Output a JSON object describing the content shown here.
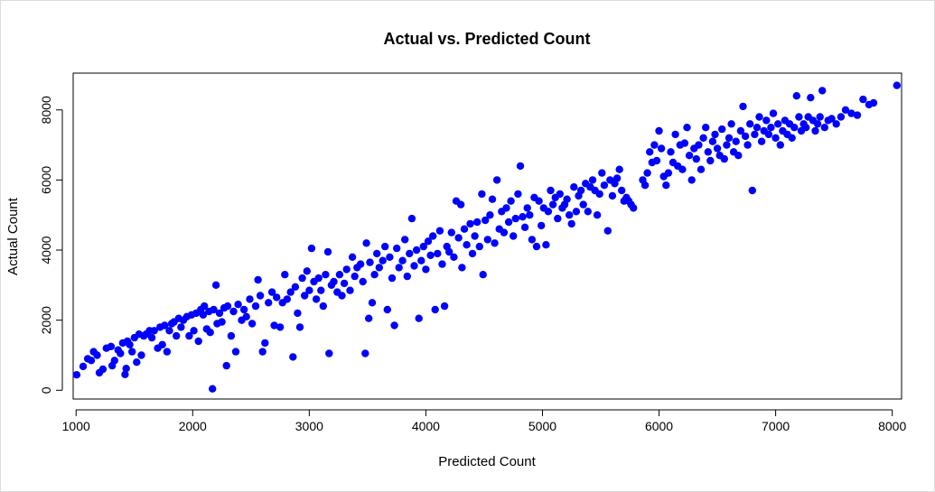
{
  "chart_data": {
    "type": "scatter",
    "title": "Actual vs. Predicted Count",
    "xlabel": "Predicted Count",
    "ylabel": "Actual Count",
    "xlim": [
      975,
      8080
    ],
    "ylim": [
      -250,
      9050
    ],
    "xticks": [
      "1000",
      "2000",
      "3000",
      "4000",
      "5000",
      "6000",
      "7000",
      "8000"
    ],
    "yticks": [
      "0",
      "2000",
      "4000",
      "6000",
      "8000"
    ],
    "grid": false,
    "legend": "none",
    "point_color": "#0000ff",
    "points": [
      [
        1005,
        440
      ],
      [
        1060,
        680
      ],
      [
        1100,
        900
      ],
      [
        1130,
        850
      ],
      [
        1150,
        1100
      ],
      [
        1180,
        1000
      ],
      [
        1200,
        500
      ],
      [
        1230,
        600
      ],
      [
        1260,
        1200
      ],
      [
        1300,
        1250
      ],
      [
        1310,
        700
      ],
      [
        1330,
        850
      ],
      [
        1360,
        1150
      ],
      [
        1380,
        1050
      ],
      [
        1400,
        1350
      ],
      [
        1420,
        450
      ],
      [
        1430,
        620
      ],
      [
        1440,
        1400
      ],
      [
        1460,
        1300
      ],
      [
        1480,
        1100
      ],
      [
        1500,
        1500
      ],
      [
        1520,
        800
      ],
      [
        1540,
        1600
      ],
      [
        1560,
        1000
      ],
      [
        1580,
        1550
      ],
      [
        1600,
        1600
      ],
      [
        1630,
        1700
      ],
      [
        1650,
        1500
      ],
      [
        1670,
        1700
      ],
      [
        1700,
        1200
      ],
      [
        1720,
        1800
      ],
      [
        1740,
        1300
      ],
      [
        1760,
        1850
      ],
      [
        1780,
        1100
      ],
      [
        1800,
        1700
      ],
      [
        1820,
        1900
      ],
      [
        1840,
        1950
      ],
      [
        1860,
        1550
      ],
      [
        1880,
        2050
      ],
      [
        1900,
        1800
      ],
      [
        1920,
        2000
      ],
      [
        1950,
        2100
      ],
      [
        1970,
        1550
      ],
      [
        1990,
        2150
      ],
      [
        2010,
        1700
      ],
      [
        2030,
        2200
      ],
      [
        2050,
        1400
      ],
      [
        2070,
        2300
      ],
      [
        2090,
        2150
      ],
      [
        2100,
        2400
      ],
      [
        2120,
        1750
      ],
      [
        2140,
        2250
      ],
      [
        2150,
        1650
      ],
      [
        2170,
        40
      ],
      [
        2180,
        2300
      ],
      [
        2200,
        3000
      ],
      [
        2210,
        1900
      ],
      [
        2230,
        2200
      ],
      [
        2250,
        1950
      ],
      [
        2270,
        2350
      ],
      [
        2290,
        700
      ],
      [
        2300,
        2400
      ],
      [
        2330,
        1550
      ],
      [
        2350,
        2250
      ],
      [
        2370,
        1100
      ],
      [
        2390,
        2450
      ],
      [
        2420,
        2000
      ],
      [
        2440,
        2300
      ],
      [
        2460,
        2100
      ],
      [
        2490,
        2600
      ],
      [
        2510,
        1900
      ],
      [
        2540,
        2400
      ],
      [
        2560,
        3150
      ],
      [
        2580,
        2700
      ],
      [
        2600,
        1100
      ],
      [
        2620,
        1350
      ],
      [
        2650,
        2500
      ],
      [
        2680,
        2800
      ],
      [
        2700,
        1850
      ],
      [
        2720,
        2650
      ],
      [
        2750,
        1800
      ],
      [
        2770,
        2500
      ],
      [
        2790,
        3300
      ],
      [
        2810,
        2600
      ],
      [
        2840,
        2800
      ],
      [
        2860,
        950
      ],
      [
        2880,
        2950
      ],
      [
        2900,
        2200
      ],
      [
        2920,
        1800
      ],
      [
        2940,
        3200
      ],
      [
        2960,
        2700
      ],
      [
        2980,
        3400
      ],
      [
        3000,
        2850
      ],
      [
        3020,
        4050
      ],
      [
        3040,
        3100
      ],
      [
        3060,
        2600
      ],
      [
        3080,
        3200
      ],
      [
        3100,
        2850
      ],
      [
        3120,
        2400
      ],
      [
        3140,
        3300
      ],
      [
        3160,
        3950
      ],
      [
        3170,
        1050
      ],
      [
        3190,
        3000
      ],
      [
        3210,
        3100
      ],
      [
        3240,
        2800
      ],
      [
        3260,
        3300
      ],
      [
        3280,
        2700
      ],
      [
        3300,
        3050
      ],
      [
        3320,
        3450
      ],
      [
        3350,
        2850
      ],
      [
        3370,
        3800
      ],
      [
        3390,
        3250
      ],
      [
        3410,
        3500
      ],
      [
        3440,
        3600
      ],
      [
        3460,
        3100
      ],
      [
        3480,
        1050
      ],
      [
        3490,
        4200
      ],
      [
        3510,
        2050
      ],
      [
        3520,
        3650
      ],
      [
        3540,
        2500
      ],
      [
        3560,
        3300
      ],
      [
        3580,
        3900
      ],
      [
        3600,
        3500
      ],
      [
        3630,
        3700
      ],
      [
        3650,
        4100
      ],
      [
        3670,
        2300
      ],
      [
        3690,
        3800
      ],
      [
        3710,
        3200
      ],
      [
        3730,
        1850
      ],
      [
        3750,
        4050
      ],
      [
        3770,
        3500
      ],
      [
        3800,
        3700
      ],
      [
        3820,
        4300
      ],
      [
        3840,
        3250
      ],
      [
        3860,
        3900
      ],
      [
        3880,
        4900
      ],
      [
        3900,
        3550
      ],
      [
        3920,
        4000
      ],
      [
        3940,
        2050
      ],
      [
        3960,
        3700
      ],
      [
        3980,
        4100
      ],
      [
        4000,
        3450
      ],
      [
        4020,
        4250
      ],
      [
        4040,
        3850
      ],
      [
        4060,
        4400
      ],
      [
        4080,
        2300
      ],
      [
        4100,
        3900
      ],
      [
        4120,
        4550
      ],
      [
        4140,
        3600
      ],
      [
        4160,
        2400
      ],
      [
        4180,
        4100
      ],
      [
        4200,
        3950
      ],
      [
        4220,
        4500
      ],
      [
        4240,
        3800
      ],
      [
        4260,
        5400
      ],
      [
        4280,
        4350
      ],
      [
        4300,
        5300
      ],
      [
        4310,
        3500
      ],
      [
        4330,
        4600
      ],
      [
        4350,
        4150
      ],
      [
        4380,
        4750
      ],
      [
        4400,
        3900
      ],
      [
        4420,
        4400
      ],
      [
        4440,
        4800
      ],
      [
        4460,
        4100
      ],
      [
        4480,
        5600
      ],
      [
        4490,
        3300
      ],
      [
        4510,
        4850
      ],
      [
        4530,
        4300
      ],
      [
        4550,
        5000
      ],
      [
        4570,
        5450
      ],
      [
        4590,
        4200
      ],
      [
        4610,
        6000
      ],
      [
        4630,
        4600
      ],
      [
        4650,
        5100
      ],
      [
        4670,
        4500
      ],
      [
        4690,
        5200
      ],
      [
        4710,
        4800
      ],
      [
        4730,
        5400
      ],
      [
        4750,
        4400
      ],
      [
        4770,
        4900
      ],
      [
        4790,
        5600
      ],
      [
        4810,
        6400
      ],
      [
        4830,
        4950
      ],
      [
        4850,
        4650
      ],
      [
        4870,
        5200
      ],
      [
        4890,
        5000
      ],
      [
        4910,
        4300
      ],
      [
        4930,
        5500
      ],
      [
        4950,
        4100
      ],
      [
        4970,
        5400
      ],
      [
        4990,
        4700
      ],
      [
        5010,
        5200
      ],
      [
        5030,
        4150
      ],
      [
        5050,
        5100
      ],
      [
        5070,
        5700
      ],
      [
        5090,
        5300
      ],
      [
        5110,
        5500
      ],
      [
        5130,
        4900
      ],
      [
        5150,
        5600
      ],
      [
        5170,
        5200
      ],
      [
        5190,
        5300
      ],
      [
        5210,
        5450
      ],
      [
        5230,
        5000
      ],
      [
        5250,
        4750
      ],
      [
        5270,
        5800
      ],
      [
        5290,
        5100
      ],
      [
        5310,
        5550
      ],
      [
        5330,
        5700
      ],
      [
        5350,
        5300
      ],
      [
        5370,
        5900
      ],
      [
        5390,
        5100
      ],
      [
        5410,
        5800
      ],
      [
        5430,
        6000
      ],
      [
        5450,
        5700
      ],
      [
        5470,
        5000
      ],
      [
        5490,
        5600
      ],
      [
        5510,
        6200
      ],
      [
        5530,
        5850
      ],
      [
        5560,
        4550
      ],
      [
        5580,
        6000
      ],
      [
        5600,
        5550
      ],
      [
        5620,
        5900
      ],
      [
        5640,
        6050
      ],
      [
        5660,
        6300
      ],
      [
        5680,
        5700
      ],
      [
        5700,
        5400
      ],
      [
        5720,
        5500
      ],
      [
        5740,
        5400
      ],
      [
        5760,
        5300
      ],
      [
        5780,
        5200
      ],
      [
        5860,
        6000
      ],
      [
        5880,
        5850
      ],
      [
        5900,
        6200
      ],
      [
        5920,
        6800
      ],
      [
        5940,
        6500
      ],
      [
        5960,
        7000
      ],
      [
        5980,
        6550
      ],
      [
        6000,
        7400
      ],
      [
        6020,
        6900
      ],
      [
        6040,
        6100
      ],
      [
        6060,
        5850
      ],
      [
        6080,
        6200
      ],
      [
        6100,
        6800
      ],
      [
        6120,
        6500
      ],
      [
        6140,
        7300
      ],
      [
        6160,
        6400
      ],
      [
        6180,
        7000
      ],
      [
        6200,
        6300
      ],
      [
        6220,
        7050
      ],
      [
        6240,
        7500
      ],
      [
        6260,
        6700
      ],
      [
        6280,
        6000
      ],
      [
        6300,
        6900
      ],
      [
        6320,
        6600
      ],
      [
        6340,
        7000
      ],
      [
        6360,
        6300
      ],
      [
        6380,
        7200
      ],
      [
        6400,
        7500
      ],
      [
        6420,
        6800
      ],
      [
        6440,
        6550
      ],
      [
        6460,
        7100
      ],
      [
        6480,
        7300
      ],
      [
        6500,
        6900
      ],
      [
        6520,
        6700
      ],
      [
        6540,
        7450
      ],
      [
        6560,
        6600
      ],
      [
        6580,
        7000
      ],
      [
        6600,
        7200
      ],
      [
        6620,
        7600
      ],
      [
        6640,
        6800
      ],
      [
        6660,
        7100
      ],
      [
        6680,
        6700
      ],
      [
        6700,
        7400
      ],
      [
        6720,
        8100
      ],
      [
        6740,
        7250
      ],
      [
        6760,
        7000
      ],
      [
        6780,
        7600
      ],
      [
        6800,
        5700
      ],
      [
        6820,
        7300
      ],
      [
        6840,
        7500
      ],
      [
        6860,
        7800
      ],
      [
        6880,
        7100
      ],
      [
        6900,
        7400
      ],
      [
        6920,
        7700
      ],
      [
        6940,
        7300
      ],
      [
        6960,
        7500
      ],
      [
        6980,
        7900
      ],
      [
        7000,
        7200
      ],
      [
        7020,
        7600
      ],
      [
        7040,
        7000
      ],
      [
        7060,
        7400
      ],
      [
        7080,
        7700
      ],
      [
        7100,
        7300
      ],
      [
        7120,
        7600
      ],
      [
        7140,
        7200
      ],
      [
        7160,
        7500
      ],
      [
        7180,
        8400
      ],
      [
        7200,
        7800
      ],
      [
        7220,
        7400
      ],
      [
        7240,
        7600
      ],
      [
        7260,
        7500
      ],
      [
        7280,
        7800
      ],
      [
        7300,
        8350
      ],
      [
        7320,
        7700
      ],
      [
        7340,
        7400
      ],
      [
        7360,
        7600
      ],
      [
        7380,
        7800
      ],
      [
        7400,
        8550
      ],
      [
        7420,
        7500
      ],
      [
        7450,
        7700
      ],
      [
        7480,
        7750
      ],
      [
        7520,
        7600
      ],
      [
        7560,
        7800
      ],
      [
        7600,
        8000
      ],
      [
        7650,
        7900
      ],
      [
        7700,
        7850
      ],
      [
        7750,
        8300
      ],
      [
        7800,
        8150
      ],
      [
        7840,
        8200
      ],
      [
        8040,
        8700
      ]
    ]
  }
}
